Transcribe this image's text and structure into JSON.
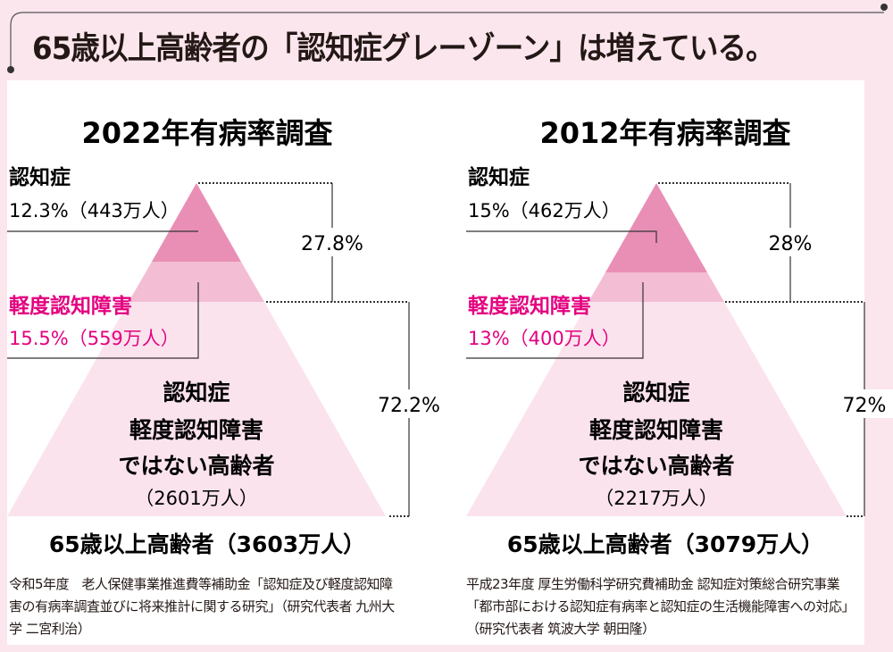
{
  "title": "65歳以上高齢者の「認知症グレーゾーン」は増えている。",
  "colors": {
    "dementia": "#e98fb5",
    "mci": "#f3bdd3",
    "normal": "#fbe3ee",
    "accent": "#e4007f",
    "background": "#fbe6ee"
  },
  "surveys": [
    {
      "heading": "2022年有病率調査",
      "dementia_label": "認知症",
      "dementia_value": "12.3%（443万人）",
      "mci_label": "軽度認知障害",
      "mci_value": "15.5%（559万人）",
      "upper_pct": "27.8%",
      "lower_pct": "72.2%",
      "normal_line1": "認知症",
      "normal_line2": "軽度認知障害",
      "normal_line3": "ではない高齢者",
      "normal_count": "（2601万人）",
      "total": "65歳以上高齢者（3603万人）",
      "source": "令和5年度　老人保健事業推進費等補助金「認知症及び軽度認知障害の有病率調査並びに将来推計に関する研究」（研究代表者 九州大学 二宮利治）"
    },
    {
      "heading": "2012年有病率調査",
      "dementia_label": "認知症",
      "dementia_value": "15%（462万人）",
      "mci_label": "軽度認知障害",
      "mci_value": "13%（400万人）",
      "upper_pct": "28%",
      "lower_pct": "72%",
      "normal_line1": "認知症",
      "normal_line2": "軽度認知障害",
      "normal_line3": "ではない高齢者",
      "normal_count": "（2217万人）",
      "total": "65歳以上高齢者（3079万人）",
      "source": "平成23年度 厚生労働科学研究費補助金 認知症対策総合研究事業「都市部における認知症有病率と認知症の生活機能障害への対応」（研究代表者 筑波大学 朝田隆）"
    }
  ]
}
